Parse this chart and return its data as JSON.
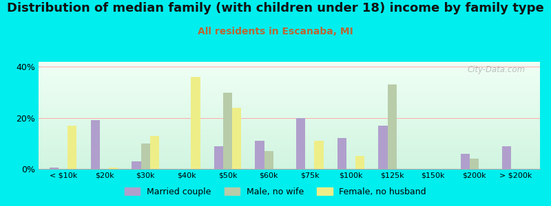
{
  "title": "Distribution of median family (with children under 18) income by family type",
  "subtitle": "All residents in Escanaba, MI",
  "categories": [
    "< $10k",
    "$20k",
    "$30k",
    "$40k",
    "$50k",
    "$60k",
    "$75k",
    "$100k",
    "$125k",
    "$150k",
    "$200k",
    "> $200k"
  ],
  "series": {
    "Married couple": [
      0.5,
      19,
      3,
      0,
      9,
      11,
      20,
      12,
      17,
      0,
      6,
      9
    ],
    "Male, no wife": [
      0,
      0,
      10,
      0,
      30,
      7,
      0,
      0,
      33,
      0,
      4,
      0
    ],
    "Female, no husband": [
      17,
      0.5,
      13,
      36,
      24,
      0,
      11,
      5,
      0,
      0,
      0,
      0
    ]
  },
  "colors": {
    "Married couple": "#b09fcc",
    "Male, no wife": "#b8ccaa",
    "Female, no husband": "#eeee88"
  },
  "background_color": "#00eeee",
  "ylim": [
    0,
    42
  ],
  "yticks": [
    0,
    20,
    40
  ],
  "ytick_labels": [
    "0%",
    "20%",
    "40%"
  ],
  "watermark": "City-Data.com",
  "bar_width": 0.22,
  "title_fontsize": 13,
  "subtitle_fontsize": 10,
  "subtitle_color": "#bb6633"
}
